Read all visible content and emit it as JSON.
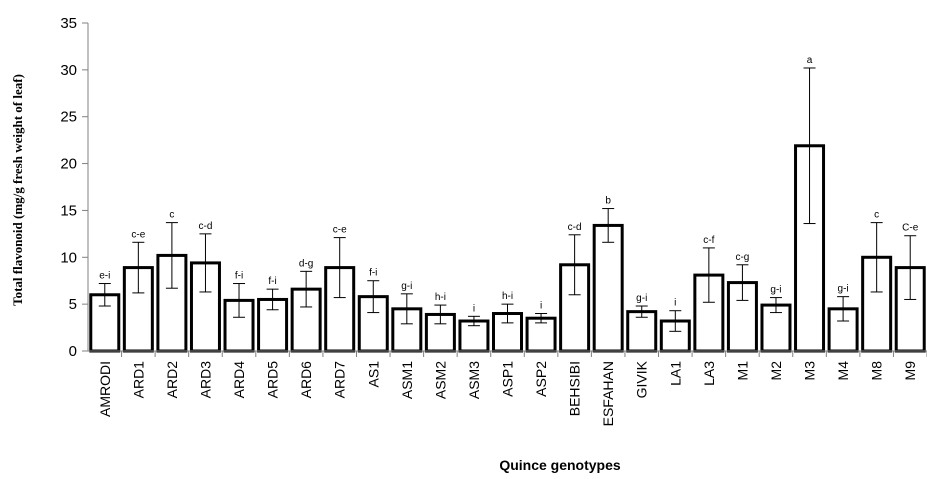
{
  "chart_data": {
    "type": "bar",
    "title": "",
    "xlabel": "Quince genotypes",
    "ylabel": "Total flavonoid (mg/g fresh weight of leaf)",
    "ylim": [
      0,
      35
    ],
    "yticks": [
      "0",
      "5",
      "10",
      "15",
      "20",
      "25",
      "30",
      "35"
    ],
    "grid": false,
    "legend": "none",
    "bar_fill": "#ffffff",
    "bar_stroke": "#000000",
    "categories": [
      "AMRODI",
      "ARD1",
      "ARD2",
      "ARD3",
      "ARD4",
      "ARD5",
      "ARD6",
      "ARD7",
      "AS1",
      "ASM1",
      "ASM2",
      "ASM3",
      "ASP1",
      "ASP2",
      "BEHSIBI",
      "ESFAHAN",
      "GIVIK",
      "LA1",
      "LA3",
      "M1",
      "M2",
      "M3",
      "M4",
      "M8",
      "M9"
    ],
    "values": [
      6.0,
      8.9,
      10.2,
      9.4,
      5.4,
      5.5,
      6.6,
      8.9,
      5.8,
      4.5,
      3.9,
      3.2,
      4.0,
      3.5,
      9.2,
      13.4,
      4.2,
      3.2,
      8.1,
      7.3,
      4.9,
      21.9,
      4.5,
      10.0,
      8.9
    ],
    "errors": [
      1.2,
      2.7,
      3.5,
      3.1,
      1.8,
      1.1,
      1.9,
      3.2,
      1.7,
      1.6,
      1.0,
      0.5,
      1.0,
      0.5,
      3.2,
      1.8,
      0.6,
      1.1,
      2.9,
      1.9,
      0.8,
      8.3,
      1.3,
      3.7,
      3.4
    ],
    "significance_letters": [
      "e-i",
      "c-e",
      "c",
      "c-d",
      "f-i",
      "f-i",
      "d-g",
      "c-e",
      "f-i",
      "g-i",
      "h-i",
      "i",
      "h-i",
      "i",
      "c-d",
      "b",
      "g-i",
      "i",
      "c-f",
      "c-g",
      "g-i",
      "a",
      "g-i",
      "c",
      "C-e"
    ]
  }
}
